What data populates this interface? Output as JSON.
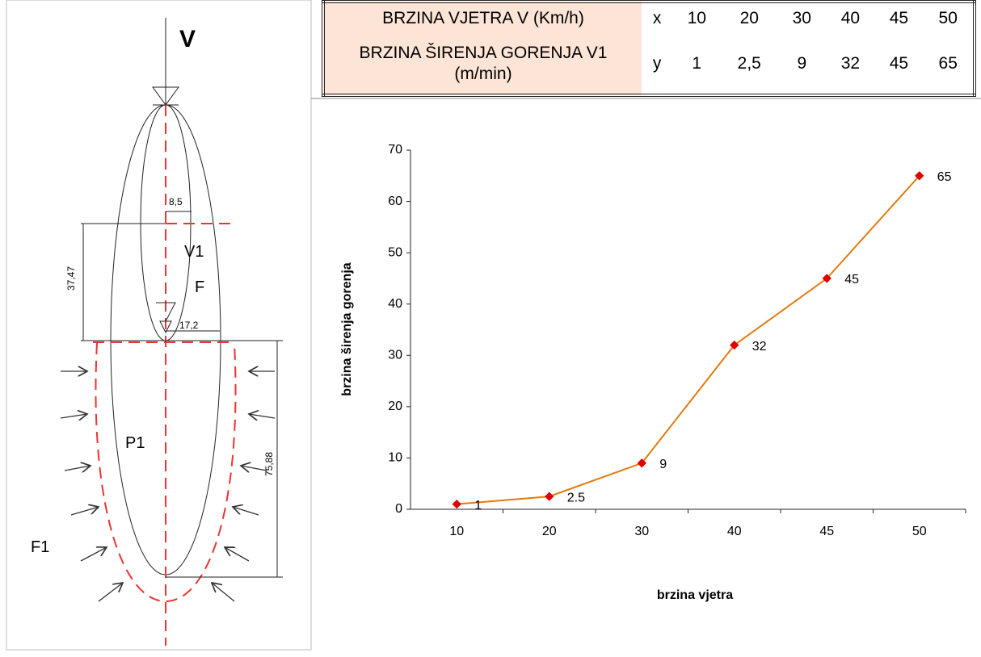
{
  "table": {
    "rows": [
      [
        "BRZINA VJETRA V (Km/h)",
        "x",
        "10",
        "20",
        "30",
        "40",
        "45",
        "50"
      ],
      [
        "BRZINA ŠIRENJA GORENJA V1 (m/min)",
        "y",
        "1",
        "2,5",
        "9",
        "32",
        "45",
        "65"
      ]
    ]
  },
  "diagram": {
    "labels": [
      "V",
      "8,5",
      "V1",
      "37,47",
      "F",
      "17,2",
      "P1",
      "75,88",
      "F1"
    ]
  },
  "chart_data": {
    "type": "line",
    "categories": [
      "10",
      "20",
      "30",
      "40",
      "45",
      "50"
    ],
    "values": [
      1,
      2.5,
      9,
      32,
      45,
      65
    ],
    "color": "#e07b10",
    "marker_color": "#e00000",
    "xlabel": "brzina vjetra",
    "ylabel": "brzina širenja gorenja",
    "ylim": [
      0,
      70
    ],
    "yticks": [
      0,
      10,
      20,
      30,
      40,
      50,
      60,
      70
    ],
    "grid": false
  }
}
